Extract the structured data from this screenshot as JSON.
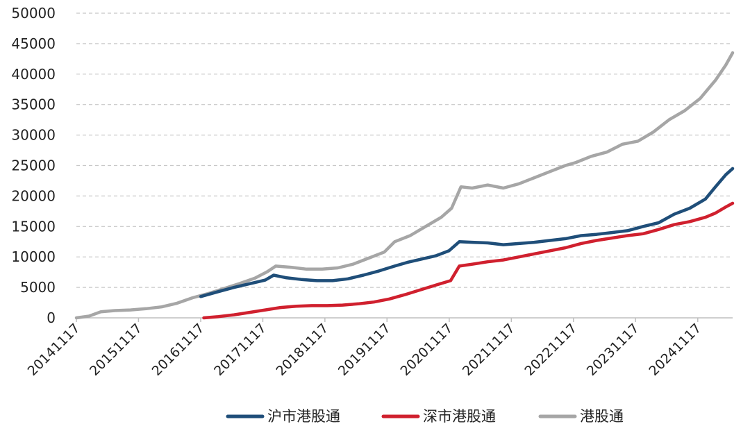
{
  "chart_data": {
    "type": "line",
    "title": "",
    "xlabel": "",
    "ylabel": "",
    "ylim": [
      0,
      50000
    ],
    "yticks": [
      "0",
      "5000",
      "10000",
      "15000",
      "20000",
      "25000",
      "30000",
      "35000",
      "40000",
      "45000",
      "50000"
    ],
    "xticks": [
      "20141117",
      "20151117",
      "20161117",
      "20171117",
      "20181117",
      "20191117",
      "20201117",
      "20211117",
      "20221117",
      "20231117",
      "20241117"
    ],
    "grid": "horizontal-dashed",
    "legend_position": "bottom",
    "series": [
      {
        "name": "沪市港股通",
        "color": "#1f4e79",
        "points": [
          [
            "2016-11-17",
            3500
          ],
          [
            "2017-03-01",
            4300
          ],
          [
            "2017-06-01",
            5000
          ],
          [
            "2017-09-01",
            5600
          ],
          [
            "2017-12-01",
            6200
          ],
          [
            "2018-01-20",
            7000
          ],
          [
            "2018-04-01",
            6600
          ],
          [
            "2018-07-01",
            6300
          ],
          [
            "2018-10-01",
            6100
          ],
          [
            "2019-01-01",
            6100
          ],
          [
            "2019-04-01",
            6400
          ],
          [
            "2019-07-01",
            7000
          ],
          [
            "2019-10-01",
            7700
          ],
          [
            "2020-01-01",
            8500
          ],
          [
            "2020-03-15",
            9100
          ],
          [
            "2020-06-01",
            9600
          ],
          [
            "2020-09-01",
            10200
          ],
          [
            "2020-11-15",
            11000
          ],
          [
            "2021-01-15",
            12500
          ],
          [
            "2021-04-01",
            12400
          ],
          [
            "2021-07-01",
            12300
          ],
          [
            "2021-10-01",
            12000
          ],
          [
            "2022-01-01",
            12200
          ],
          [
            "2022-04-01",
            12400
          ],
          [
            "2022-07-01",
            12700
          ],
          [
            "2022-10-01",
            13000
          ],
          [
            "2023-01-01",
            13500
          ],
          [
            "2023-04-01",
            13700
          ],
          [
            "2023-07-01",
            14000
          ],
          [
            "2023-10-01",
            14300
          ],
          [
            "2024-01-01",
            15000
          ],
          [
            "2024-04-01",
            15600
          ],
          [
            "2024-07-01",
            17000
          ],
          [
            "2024-10-01",
            18000
          ],
          [
            "2025-01-01",
            19500
          ],
          [
            "2025-03-01",
            21500
          ],
          [
            "2025-05-01",
            23500
          ],
          [
            "2025-06-10",
            24500
          ]
        ]
      },
      {
        "name": "深市港股通",
        "color": "#d0202e",
        "points": [
          [
            "2016-12-05",
            0
          ],
          [
            "2017-03-01",
            200
          ],
          [
            "2017-06-01",
            500
          ],
          [
            "2017-09-01",
            900
          ],
          [
            "2017-12-01",
            1300
          ],
          [
            "2018-03-01",
            1700
          ],
          [
            "2018-06-01",
            1900
          ],
          [
            "2018-09-01",
            2000
          ],
          [
            "2018-12-01",
            2000
          ],
          [
            "2019-03-01",
            2100
          ],
          [
            "2019-06-01",
            2300
          ],
          [
            "2019-09-01",
            2600
          ],
          [
            "2019-12-01",
            3100
          ],
          [
            "2020-03-01",
            3800
          ],
          [
            "2020-06-01",
            4600
          ],
          [
            "2020-09-01",
            5400
          ],
          [
            "2020-11-25",
            6100
          ],
          [
            "2021-01-15",
            8500
          ],
          [
            "2021-04-01",
            8800
          ],
          [
            "2021-07-01",
            9200
          ],
          [
            "2021-10-01",
            9500
          ],
          [
            "2022-01-01",
            10000
          ],
          [
            "2022-04-01",
            10500
          ],
          [
            "2022-07-01",
            11000
          ],
          [
            "2022-10-01",
            11500
          ],
          [
            "2023-01-01",
            12200
          ],
          [
            "2023-04-01",
            12700
          ],
          [
            "2023-07-01",
            13100
          ],
          [
            "2023-10-01",
            13500
          ],
          [
            "2024-01-01",
            13800
          ],
          [
            "2024-04-01",
            14500
          ],
          [
            "2024-07-01",
            15300
          ],
          [
            "2024-10-01",
            15800
          ],
          [
            "2025-01-01",
            16500
          ],
          [
            "2025-03-01",
            17200
          ],
          [
            "2025-05-01",
            18200
          ],
          [
            "2025-06-10",
            18800
          ]
        ]
      },
      {
        "name": "港股通",
        "color": "#a6a6a6",
        "points": [
          [
            "2014-11-17",
            0
          ],
          [
            "2015-02-01",
            300
          ],
          [
            "2015-04-10",
            1000
          ],
          [
            "2015-07-01",
            1200
          ],
          [
            "2015-10-01",
            1300
          ],
          [
            "2016-01-01",
            1500
          ],
          [
            "2016-04-01",
            1800
          ],
          [
            "2016-07-01",
            2400
          ],
          [
            "2016-10-01",
            3300
          ],
          [
            "2017-01-01",
            4000
          ],
          [
            "2017-04-01",
            4800
          ],
          [
            "2017-07-01",
            5600
          ],
          [
            "2017-10-01",
            6500
          ],
          [
            "2017-12-15",
            7600
          ],
          [
            "2018-02-01",
            8500
          ],
          [
            "2018-05-01",
            8300
          ],
          [
            "2018-08-01",
            8000
          ],
          [
            "2018-11-01",
            8000
          ],
          [
            "2019-02-01",
            8200
          ],
          [
            "2019-05-01",
            8800
          ],
          [
            "2019-08-01",
            9800
          ],
          [
            "2019-11-01",
            10800
          ],
          [
            "2020-01-01",
            12500
          ],
          [
            "2020-04-01",
            13500
          ],
          [
            "2020-07-01",
            15000
          ],
          [
            "2020-10-01",
            16500
          ],
          [
            "2020-12-01",
            18000
          ],
          [
            "2021-01-25",
            21500
          ],
          [
            "2021-04-01",
            21300
          ],
          [
            "2021-07-01",
            21800
          ],
          [
            "2021-10-01",
            21300
          ],
          [
            "2022-01-01",
            22000
          ],
          [
            "2022-04-01",
            23000
          ],
          [
            "2022-07-01",
            24000
          ],
          [
            "2022-10-01",
            25000
          ],
          [
            "2022-12-01",
            25500
          ],
          [
            "2023-03-01",
            26500
          ],
          [
            "2023-06-01",
            27200
          ],
          [
            "2023-09-01",
            28500
          ],
          [
            "2023-12-01",
            29000
          ],
          [
            "2024-03-01",
            30500
          ],
          [
            "2024-06-01",
            32500
          ],
          [
            "2024-09-01",
            34000
          ],
          [
            "2024-12-01",
            36000
          ],
          [
            "2025-03-01",
            39000
          ],
          [
            "2025-05-01",
            41500
          ],
          [
            "2025-06-10",
            43500
          ]
        ]
      }
    ]
  }
}
